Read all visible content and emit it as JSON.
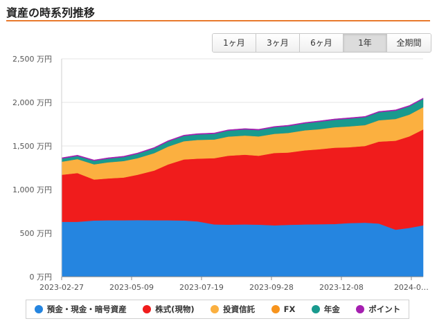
{
  "header": {
    "title": "資産の時系列推移"
  },
  "range_selector": {
    "buttons": [
      {
        "label": "1ヶ月",
        "active": false
      },
      {
        "label": "3ヶ月",
        "active": false
      },
      {
        "label": "6ヶ月",
        "active": false
      },
      {
        "label": "1年",
        "active": true
      },
      {
        "label": "全期間",
        "active": false
      }
    ]
  },
  "chart_data": {
    "type": "area",
    "stacked": true,
    "y_unit": "万円",
    "ylim": [
      0,
      2500
    ],
    "yticks": [
      0,
      500,
      1000,
      1500,
      2000,
      2500
    ],
    "ytick_labels": [
      "0 万円",
      "500 万円",
      "1,000 万円",
      "1,500 万円",
      "2,000 万円",
      "2,500 万円"
    ],
    "xlim": [
      "2023-02-27",
      "2024-02-29"
    ],
    "xtick_labels": [
      "2023-02-27",
      "2023-05-09",
      "2023-07-19",
      "2023-09-28",
      "2023-12-08",
      "2024-0…"
    ],
    "xtick_dates": [
      "2023-02-27",
      "2023-05-09",
      "2023-07-19",
      "2023-09-28",
      "2023-12-08",
      "2024-02-17"
    ],
    "grid": true,
    "legend_position": "bottom",
    "x": [
      "2023-02-27",
      "2023-03-15",
      "2023-04-01",
      "2023-04-15",
      "2023-05-01",
      "2023-05-15",
      "2023-06-01",
      "2023-06-15",
      "2023-07-01",
      "2023-07-15",
      "2023-08-01",
      "2023-08-15",
      "2023-09-01",
      "2023-09-15",
      "2023-10-01",
      "2023-10-15",
      "2023-11-01",
      "2023-11-15",
      "2023-12-01",
      "2023-12-15",
      "2024-01-01",
      "2024-01-15",
      "2024-02-01",
      "2024-02-15",
      "2024-02-29"
    ],
    "series": [
      {
        "name": "預金・現金・暗号資産",
        "color": "#2585e0",
        "values": [
          630,
          630,
          645,
          648,
          648,
          650,
          648,
          648,
          645,
          635,
          600,
          598,
          600,
          598,
          590,
          595,
          600,
          602,
          605,
          615,
          620,
          610,
          540,
          560,
          590
        ]
      },
      {
        "name": "株式(現物)",
        "color": "#f01c1c",
        "values": [
          540,
          560,
          470,
          480,
          490,
          520,
          570,
          640,
          700,
          720,
          760,
          790,
          800,
          790,
          830,
          830,
          850,
          860,
          875,
          870,
          880,
          940,
          1020,
          1050,
          1100
        ]
      },
      {
        "name": "投資信託",
        "color": "#fbb040",
        "values": [
          150,
          160,
          175,
          185,
          190,
          190,
          200,
          205,
          210,
          215,
          215,
          220,
          220,
          222,
          220,
          225,
          230,
          230,
          235,
          240,
          240,
          245,
          250,
          250,
          255
        ]
      },
      {
        "name": "FX",
        "color": "#f7941d",
        "values": [
          0,
          0,
          0,
          0,
          0,
          0,
          0,
          0,
          0,
          0,
          0,
          0,
          0,
          0,
          0,
          0,
          0,
          0,
          0,
          0,
          0,
          0,
          0,
          0,
          0
        ]
      },
      {
        "name": "年金",
        "color": "#199a8e",
        "values": [
          35,
          35,
          40,
          42,
          45,
          50,
          55,
          58,
          60,
          62,
          65,
          68,
          70,
          72,
          75,
          78,
          80,
          85,
          85,
          88,
          90,
          92,
          95,
          95,
          95
        ]
      },
      {
        "name": "ポイント",
        "color": "#a51fb0",
        "values": [
          10,
          10,
          10,
          10,
          10,
          10,
          10,
          10,
          10,
          10,
          10,
          10,
          10,
          10,
          10,
          10,
          10,
          10,
          10,
          10,
          10,
          10,
          10,
          10,
          10
        ]
      }
    ]
  }
}
